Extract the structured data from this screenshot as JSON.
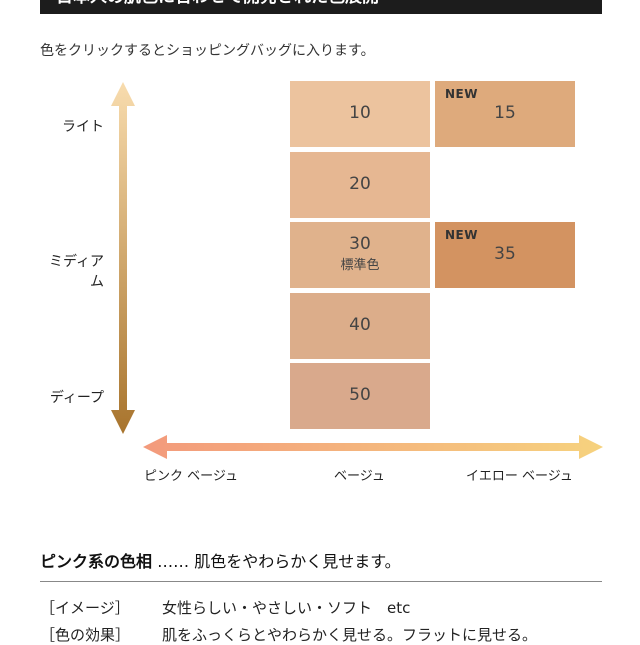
{
  "banner": {
    "title": "日本人の肌色に合わせて開発された色展開"
  },
  "instruction": "色をクリックするとショッピングバッグに入ります。",
  "vertical_axis": {
    "light": "ライト",
    "medium": "ミディアム",
    "deep": "ディープ"
  },
  "horizontal_axis": {
    "pink": "ピンク ベージュ",
    "beige": "ベージュ",
    "yellow": "イエロー ベージュ"
  },
  "swatches": [
    {
      "number": "10",
      "sub": "",
      "badge": "",
      "color": "#ecc39e"
    },
    {
      "number": "15",
      "sub": "",
      "badge": "NEW",
      "color": "#deaa7c"
    },
    {
      "number": "20",
      "sub": "",
      "badge": "",
      "color": "#e6b792"
    },
    {
      "number": "30",
      "sub": "標準色",
      "badge": "",
      "color": "#e0b28c"
    },
    {
      "number": "35",
      "sub": "",
      "badge": "NEW",
      "color": "#d39361"
    },
    {
      "number": "40",
      "sub": "",
      "badge": "",
      "color": "#dcad8a"
    },
    {
      "number": "50",
      "sub": "",
      "badge": "",
      "color": "#d9a98c"
    }
  ],
  "section": {
    "title_bold": "ピンク系の色相",
    "title_rest": " …… 肌色をやわらかく見せます。",
    "rows": [
      {
        "key": "［イメージ］",
        "value": "女性らしい・やさしい・ソフト　etc"
      },
      {
        "key": "［色の効果］",
        "value": "肌をふっくらとやわらかく見せる。フラットに見せる。"
      }
    ]
  },
  "colors": {
    "vertical_arrow_top": "#f8dcae",
    "vertical_arrow_bottom": "#a8742d",
    "horizontal_arrow_left": "#f39a7c",
    "horizontal_arrow_right": "#f6d27e"
  }
}
